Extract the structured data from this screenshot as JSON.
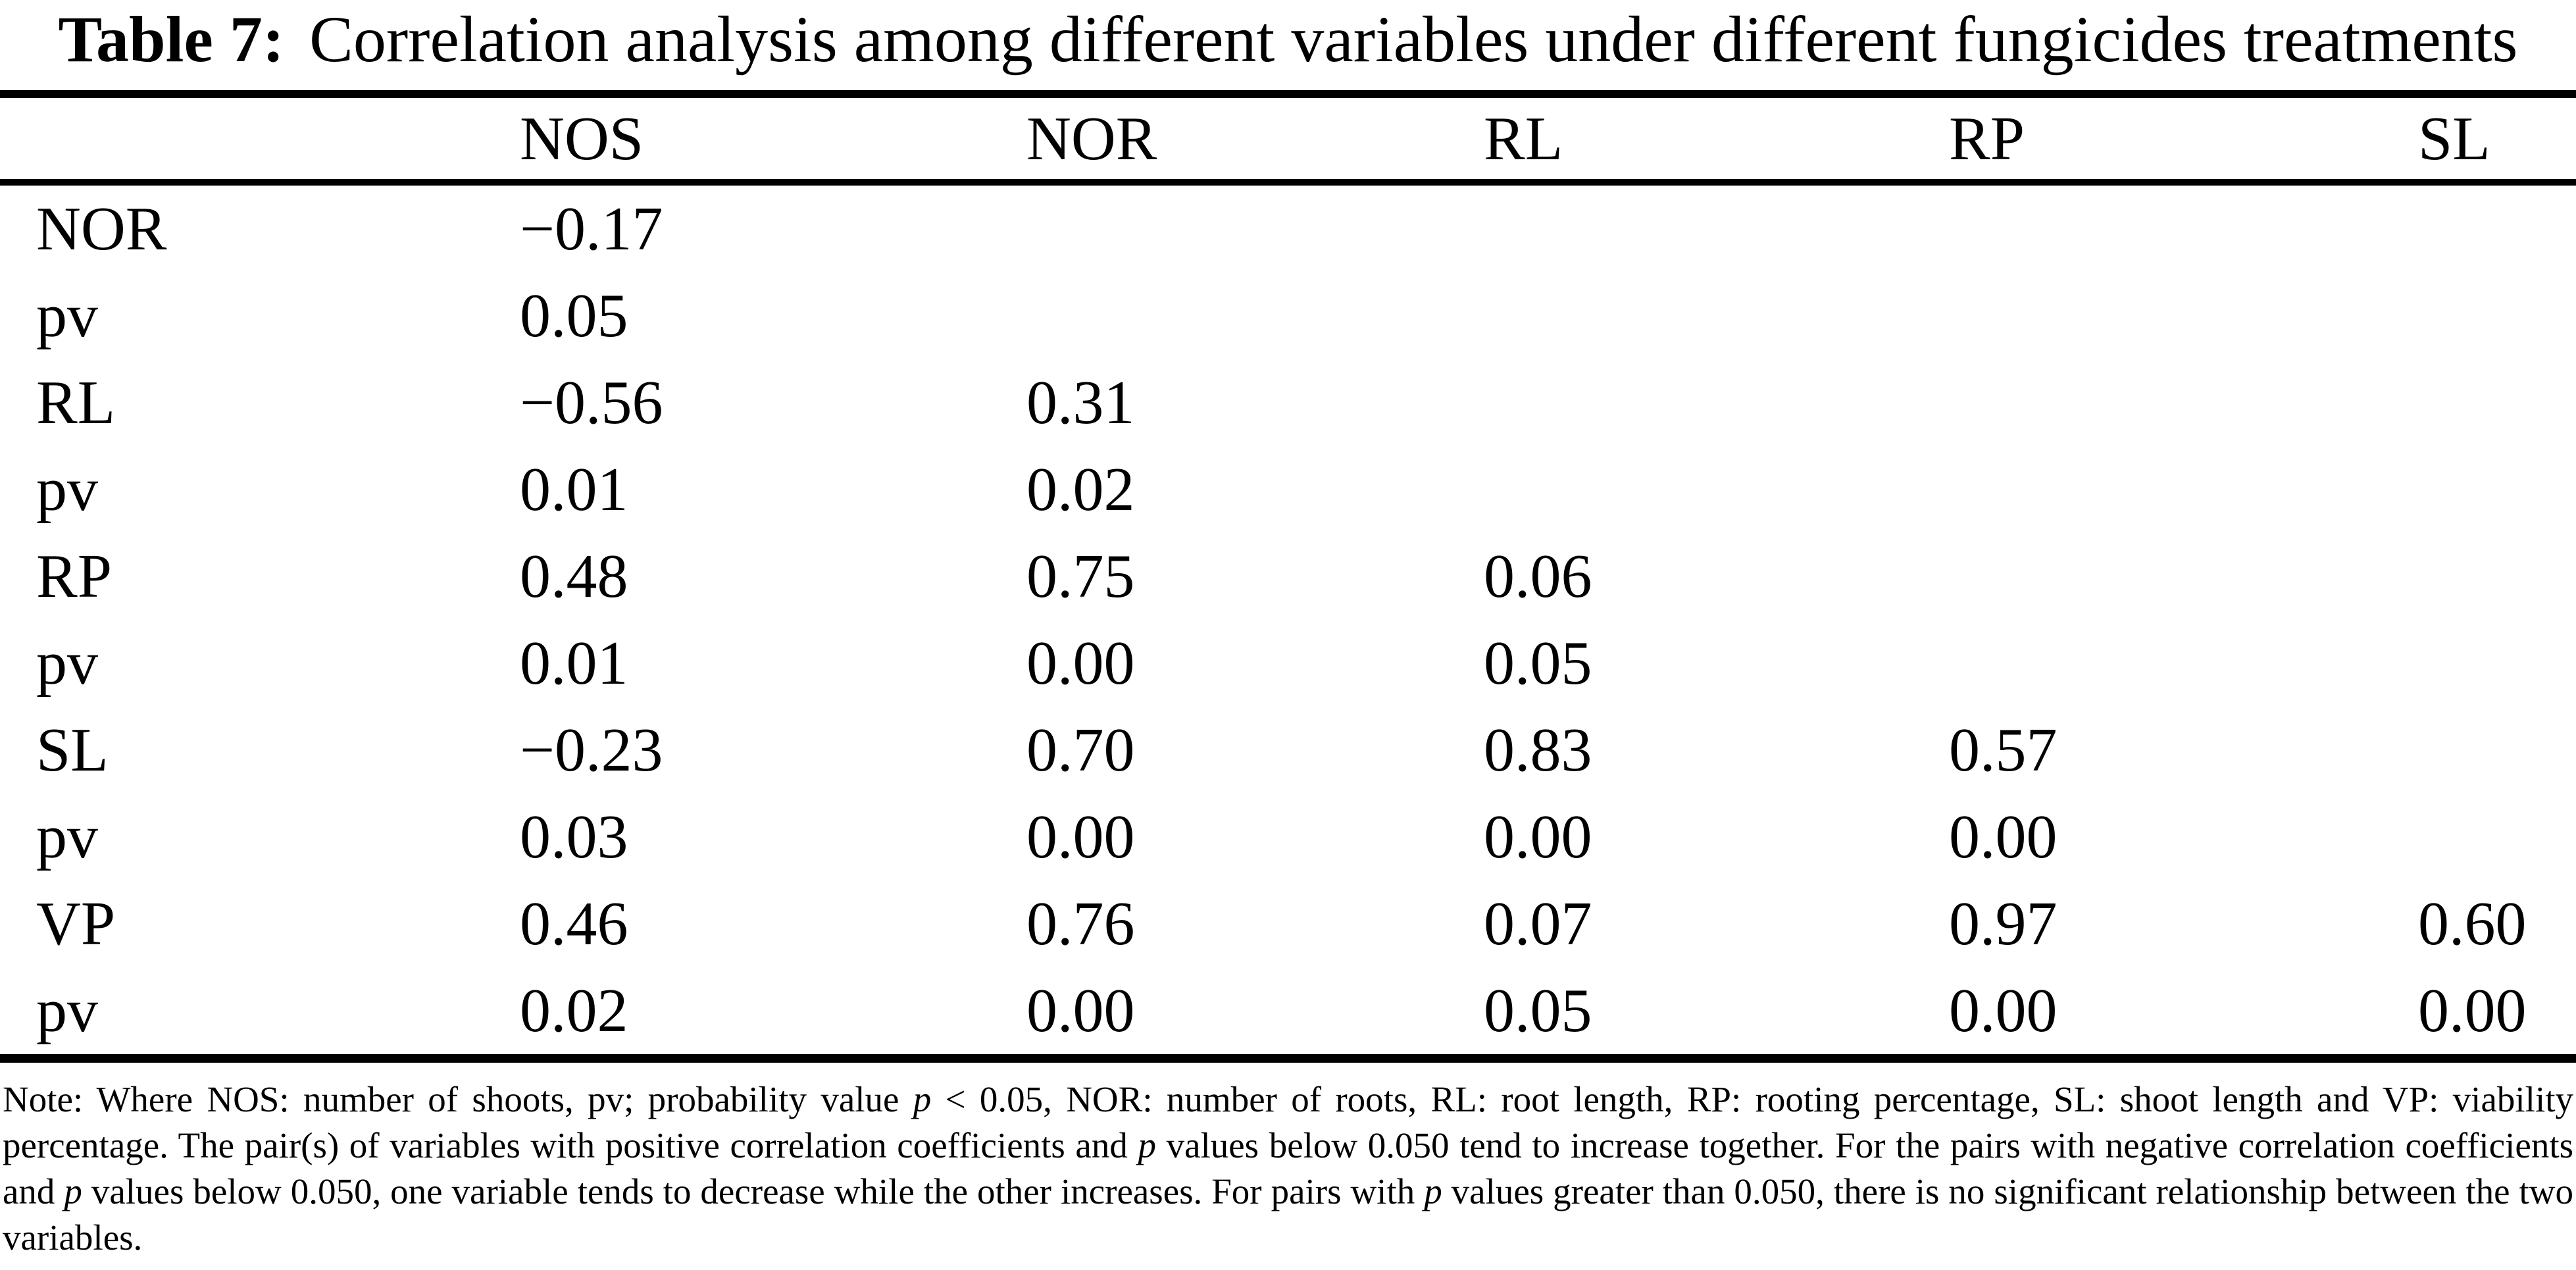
{
  "page": {
    "background_color": "#ffffff",
    "text_color": "#000000"
  },
  "title": {
    "label": "Table 7:",
    "text": "Correlation analysis among different variables under different fungicides treatments"
  },
  "table": {
    "header": [
      "",
      "NOS",
      "NOR",
      "RL",
      "RP",
      "SL"
    ],
    "rows": [
      {
        "label": "NOR",
        "values": [
          "−0.17",
          "",
          "",
          "",
          ""
        ]
      },
      {
        "label": "pv",
        "values": [
          "0.05",
          "",
          "",
          "",
          ""
        ]
      },
      {
        "label": "RL",
        "values": [
          "−0.56",
          "0.31",
          "",
          "",
          ""
        ]
      },
      {
        "label": "pv",
        "values": [
          "0.01",
          "0.02",
          "",
          "",
          ""
        ]
      },
      {
        "label": "RP",
        "values": [
          "0.48",
          "0.75",
          "0.06",
          "",
          ""
        ]
      },
      {
        "label": "pv",
        "values": [
          "0.01",
          "0.00",
          "0.05",
          "",
          ""
        ]
      },
      {
        "label": "SL",
        "values": [
          "−0.23",
          "0.70",
          "0.83",
          "0.57",
          ""
        ]
      },
      {
        "label": "pv",
        "values": [
          "0.03",
          "0.00",
          "0.00",
          "0.00",
          ""
        ]
      },
      {
        "label": "VP",
        "values": [
          "0.46",
          "0.76",
          "0.07",
          "0.97",
          "0.60"
        ]
      },
      {
        "label": "pv",
        "values": [
          "0.02",
          "0.00",
          "0.05",
          "0.00",
          "0.00"
        ]
      }
    ]
  },
  "note": {
    "runs": [
      {
        "text": "Note: Where NOS: number of shoots, pv; probability value "
      },
      {
        "text": "p",
        "italic": true
      },
      {
        "text": " < 0.05, NOR: number of roots, RL: root length, RP: rooting percentage, SL: shoot length and VP: viability percentage. The pair(s) of variables with positive correlation coefficients and "
      },
      {
        "text": "p",
        "italic": true
      },
      {
        "text": " values below 0.050 tend to increase together. For the pairs with negative correlation coefficients and "
      },
      {
        "text": "p",
        "italic": true
      },
      {
        "text": " values below 0.050, one variable tends to decrease while the other increases. For pairs with "
      },
      {
        "text": "p",
        "italic": true
      },
      {
        "text": " values greater than 0.050, there is no significant relationship between the two variables."
      }
    ]
  }
}
